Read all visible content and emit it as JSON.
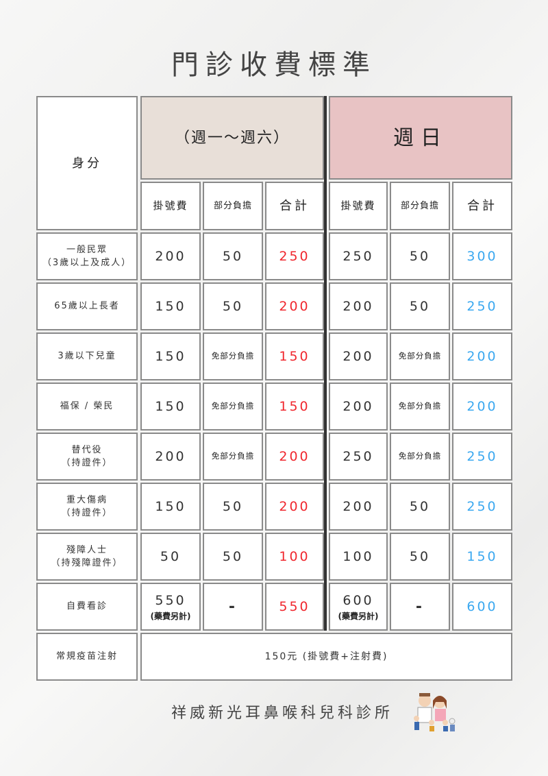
{
  "title": "門診收費標準",
  "header": {
    "identity": "身分",
    "weekday": "（週一～週六）",
    "sunday": "週日",
    "columns": [
      "掛號費",
      "部分負擔",
      "合計",
      "掛號費",
      "部分負擔",
      "合計"
    ]
  },
  "rows": [
    {
      "identity": "一般民眾",
      "identity_note": "（3歲以上及成人）",
      "cells": [
        "200",
        "50",
        "250",
        "250",
        "50",
        "300"
      ]
    },
    {
      "identity": "65歲以上長者",
      "identity_note": "",
      "cells": [
        "150",
        "50",
        "200",
        "200",
        "50",
        "250"
      ]
    },
    {
      "identity": "3歲以下兒童",
      "identity_note": "",
      "cells": [
        "150",
        "免部分負擔",
        "150",
        "200",
        "免部分負擔",
        "200"
      ]
    },
    {
      "identity": "福保 / 榮民",
      "identity_note": "",
      "cells": [
        "150",
        "免部分負擔",
        "150",
        "200",
        "免部分負擔",
        "200"
      ]
    },
    {
      "identity": "替代役",
      "identity_note": "（持證件）",
      "cells": [
        "200",
        "免部分負擔",
        "200",
        "250",
        "免部分負擔",
        "250"
      ]
    },
    {
      "identity": "重大傷病",
      "identity_note": "（持證件）",
      "cells": [
        "150",
        "50",
        "200",
        "200",
        "50",
        "250"
      ]
    },
    {
      "identity": "殘障人士",
      "identity_note": "（持殘障證件）",
      "cells": [
        "50",
        "50",
        "100",
        "100",
        "50",
        "150"
      ]
    },
    {
      "identity": "自費看診",
      "identity_note": "",
      "cells": [
        "550",
        "-",
        "550",
        "600",
        "-",
        "600"
      ],
      "cell_notes": [
        "(藥費另計)",
        "",
        "",
        "(藥費另計)",
        "",
        ""
      ]
    }
  ],
  "vaccine": {
    "identity": "常規疫苗注射",
    "value": "150元 (掛號費+注射費)"
  },
  "footer": {
    "clinic_name": "祥威新光耳鼻喉科兒科診所",
    "mascot_icon": "doctor-nurse-family-illustration"
  },
  "colors": {
    "weekday_header": "#e8dfd8",
    "sunday_header": "#e8c3c4",
    "weekday_total": "#f0262d",
    "sunday_total": "#3aa8f0"
  }
}
